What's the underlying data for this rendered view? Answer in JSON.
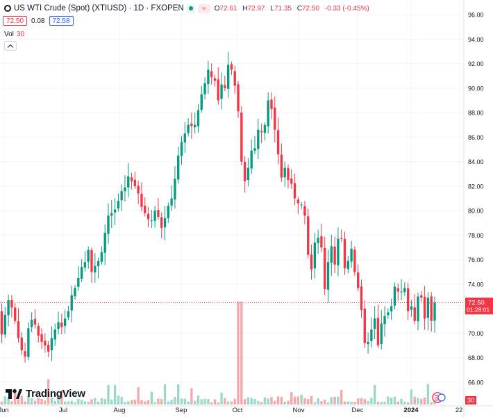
{
  "header": {
    "symbol": "US WTI Crude (Spot) (XTIUSD) · 1D · FXOPEN",
    "open_label": "O",
    "open": "72.61",
    "high_label": "H",
    "high": "72.97",
    "low_label": "L",
    "low": "71.35",
    "close_label": "C",
    "close": "72.50",
    "change": "-0.33 (-0.45%)",
    "bid": "72.50",
    "spread": "0.08",
    "ask": "72.58"
  },
  "volume": {
    "label": "Vol",
    "value": "30"
  },
  "price_label": {
    "value": "72.50",
    "countdown": "01:28:01"
  },
  "volume_label": {
    "value": "30"
  },
  "logo": {
    "text": "TradingView"
  },
  "colors": {
    "up": "#089981",
    "down": "#f23645",
    "vol_up": "#9bd8c7",
    "vol_down": "#f3a9a9",
    "grid": "#f0f3fa",
    "text": "#131722"
  },
  "chart_data": {
    "type": "candlestick",
    "series_type": "ohlc-daily",
    "ylim": [
      65,
      97
    ],
    "yticks": [
      "66.00",
      "68.00",
      "70.00",
      "72.00",
      "74.00",
      "76.00",
      "78.00",
      "80.00",
      "82.00",
      "84.00",
      "86.00",
      "88.00",
      "90.00",
      "92.00",
      "94.00",
      "96.00"
    ],
    "xticks": [
      "Jun",
      "Jul",
      "Aug",
      "Sep",
      "Oct",
      "Nov",
      "Dec",
      "2024",
      "22"
    ],
    "last_price": 72.5,
    "volume_current": 30,
    "closes": [
      69.9,
      71.5,
      72.7,
      72.1,
      71.0,
      69.6,
      68.6,
      68.1,
      70.4,
      71.1,
      70.7,
      69.8,
      69.3,
      69.0,
      68.5,
      69.6,
      70.3,
      70.9,
      70.5,
      71.2,
      71.8,
      73.1,
      73.7,
      74.5,
      75.4,
      75.8,
      76.8,
      75.0,
      75.5,
      75.9,
      76.6,
      78.2,
      79.6,
      79.8,
      80.1,
      80.8,
      81.6,
      81.9,
      82.8,
      82.4,
      82.0,
      81.4,
      80.3,
      79.8,
      79.3,
      79.2,
      80.0,
      79.5,
      78.6,
      79.4,
      80.4,
      81.0,
      82.6,
      84.5,
      85.6,
      86.3,
      87.0,
      86.9,
      87.0,
      88.2,
      89.5,
      90.4,
      91.5,
      90.9,
      90.6,
      89.0,
      90.3,
      90.0,
      91.9,
      91.5,
      90.2,
      88.1,
      84.0,
      82.4,
      83.5,
      84.9,
      85.1,
      86.6,
      86.4,
      87.0,
      89.0,
      88.3,
      86.6,
      84.6,
      82.7,
      83.5,
      82.5,
      82.2,
      81.0,
      80.6,
      80.5,
      79.6,
      76.4,
      75.2,
      77.4,
      77.8,
      77.0,
      73.6,
      75.8,
      77.1,
      75.6,
      77.7,
      77.7,
      75.3,
      75.9,
      76.9,
      75.0,
      73.7,
      71.9,
      69.2,
      69.3,
      70.3,
      71.2,
      69.0,
      70.8,
      71.4,
      71.7,
      72.2,
      73.8,
      73.4,
      73.4,
      73.7,
      71.8,
      72.2,
      71.0,
      73.0,
      72.9,
      71.2,
      72.9,
      71.0,
      72.5
    ]
  }
}
